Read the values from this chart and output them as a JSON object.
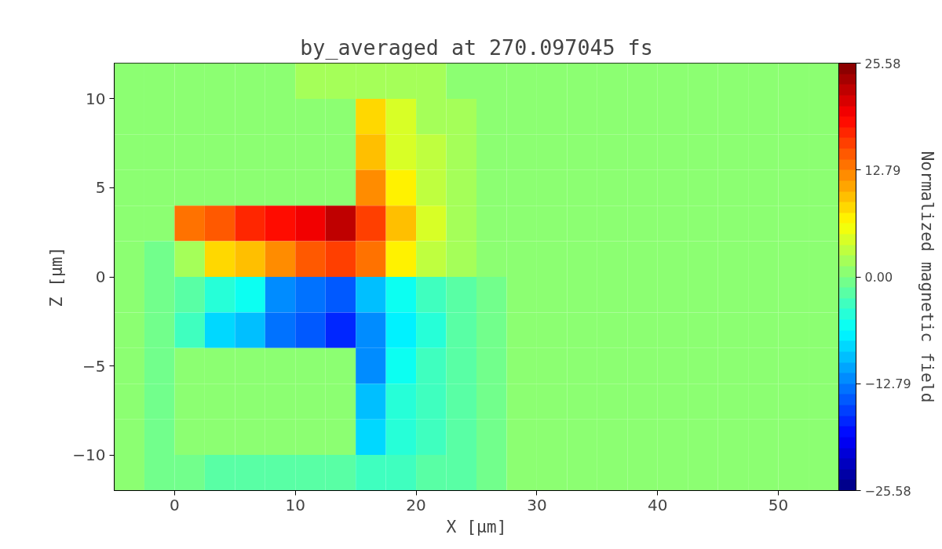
{
  "chart_data": {
    "type": "heatmap",
    "title": "by_averaged at 270.097045 fs",
    "xlabel": "X [μm]",
    "ylabel": "Z [μm]",
    "clabel": "Normalized magnetic field",
    "x": [
      -3.75,
      -1.25,
      1.25,
      3.75,
      6.25,
      8.75,
      11.25,
      13.75,
      16.25,
      18.75,
      21.25,
      23.75,
      26.25,
      28.75,
      31.25,
      33.75,
      36.25,
      38.75,
      41.25,
      43.75,
      46.25,
      48.75,
      51.25,
      53.75
    ],
    "y": [
      11,
      9,
      7,
      5,
      3,
      1,
      -1,
      -3,
      -5,
      -7,
      -9,
      -11
    ],
    "cells": [
      [
        0,
        0,
        1,
        1,
        1,
        1,
        2,
        2,
        2,
        2,
        2,
        1,
        1,
        0,
        0,
        0,
        0,
        0,
        0,
        0,
        0,
        0,
        0,
        0
      ],
      [
        0,
        0,
        0,
        0,
        0,
        0,
        0,
        0,
        8,
        4,
        2,
        2,
        1,
        1,
        0,
        0,
        0,
        0,
        0,
        0,
        0,
        0,
        0,
        0
      ],
      [
        0,
        0,
        0,
        0,
        0,
        0,
        0,
        0,
        9,
        5,
        3,
        2,
        1,
        1,
        0,
        0,
        0,
        0,
        0,
        0,
        0,
        0,
        0,
        0
      ],
      [
        0,
        0,
        0,
        0,
        0,
        0,
        0,
        0,
        12,
        7,
        3,
        2,
        1,
        0,
        0,
        0,
        0,
        0,
        0,
        0,
        0,
        0,
        0,
        0
      ],
      [
        0,
        0,
        14,
        15,
        17,
        18,
        20,
        22,
        16,
        9,
        4,
        2,
        1,
        0,
        0,
        0,
        0,
        0,
        0,
        0,
        0,
        0,
        0,
        0
      ],
      [
        0,
        -1,
        2,
        8,
        10,
        12,
        15,
        16,
        13,
        7,
        3,
        2,
        1,
        0,
        0,
        0,
        0,
        0,
        0,
        0,
        0,
        0,
        0,
        0
      ],
      [
        0,
        -1,
        -2,
        -4,
        -6,
        -12,
        -14,
        -15,
        -10,
        -6,
        -3,
        -2,
        -1,
        0,
        0,
        0,
        0,
        0,
        0,
        0,
        0,
        0,
        0,
        0
      ],
      [
        0,
        -1,
        -3,
        -8,
        -10,
        -13,
        -15,
        -17,
        -12,
        -7,
        -4,
        -2,
        -1,
        0,
        0,
        0,
        0,
        0,
        0,
        0,
        0,
        0,
        0,
        0
      ],
      [
        0,
        -1,
        0,
        0,
        0,
        0,
        0,
        0,
        -12,
        -6,
        -3,
        -2,
        -1,
        0,
        0,
        0,
        0,
        0,
        0,
        0,
        0,
        0,
        0,
        0
      ],
      [
        0,
        -1,
        0,
        0,
        0,
        0,
        0,
        0,
        -10,
        -5,
        -3,
        -2,
        -1,
        0,
        0,
        0,
        0,
        0,
        0,
        0,
        0,
        0,
        0,
        0
      ],
      [
        0,
        -1,
        0,
        0,
        0,
        0,
        0,
        0,
        -8,
        -4,
        -3,
        -2,
        -1,
        0,
        0,
        0,
        0,
        0,
        0,
        0,
        0,
        0,
        0,
        0
      ],
      [
        0,
        -1,
        -1,
        -2,
        -2,
        -2,
        -2,
        -2,
        -3,
        -3,
        -2,
        -2,
        -1,
        0,
        0,
        0,
        0,
        0,
        0,
        0,
        0,
        0,
        0,
        0
      ]
    ],
    "xlim": [
      -5,
      55
    ],
    "ylim": [
      -12,
      12
    ],
    "xticks": [
      0,
      10,
      20,
      30,
      40,
      50
    ],
    "yticks": [
      {
        "value": -10,
        "label": "−10"
      },
      {
        "value": -5,
        "label": "−5"
      },
      0,
      5,
      10
    ],
    "clim": [
      -25.58,
      25.58
    ],
    "cticks": [
      {
        "value": -25.58,
        "label": "−25.58"
      },
      {
        "value": -12.79,
        "label": "−12.79"
      },
      {
        "value": 0,
        "label": "0.00"
      },
      12.79,
      25.58
    ]
  }
}
